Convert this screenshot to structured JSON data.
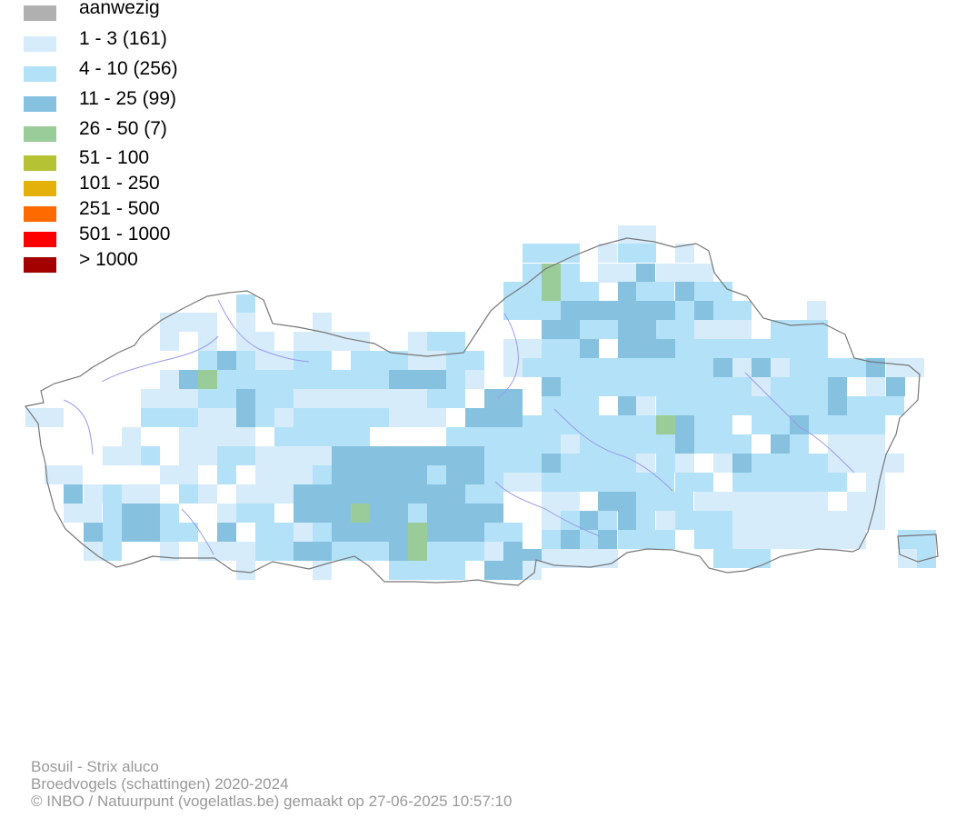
{
  "legend": [
    {
      "label": "aanwezig",
      "color": "#b0b0b0"
    },
    {
      "label": "1 - 3 (161)",
      "color": "#d6ecfa"
    },
    {
      "label": "4 - 10 (256)",
      "color": "#b3e2f8"
    },
    {
      "label": "11 - 25 (99)",
      "color": "#86c1df"
    },
    {
      "label": "26 - 50 (7)",
      "color": "#99cc99"
    },
    {
      "label": "51 - 100",
      "color": "#b5c234"
    },
    {
      "label": "101 - 250",
      "color": "#e3b10a"
    },
    {
      "label": "251 - 500",
      "color": "#ff6a00"
    },
    {
      "label": "501 - 1000",
      "color": "#ff0000"
    },
    {
      "label": "> 1000",
      "color": "#a30000"
    }
  ],
  "footer": {
    "species": "Bosuil - Strix aluco",
    "subtitle": "Broedvogels (schattingen) 2020-2024",
    "credit": "© INBO / Natuurpunt (vogelatlas.be) gemaakt op 27-06-2025 10:57:10"
  },
  "map": {
    "region_outline_color": "#777777",
    "river_color": "#9999ee"
  }
}
